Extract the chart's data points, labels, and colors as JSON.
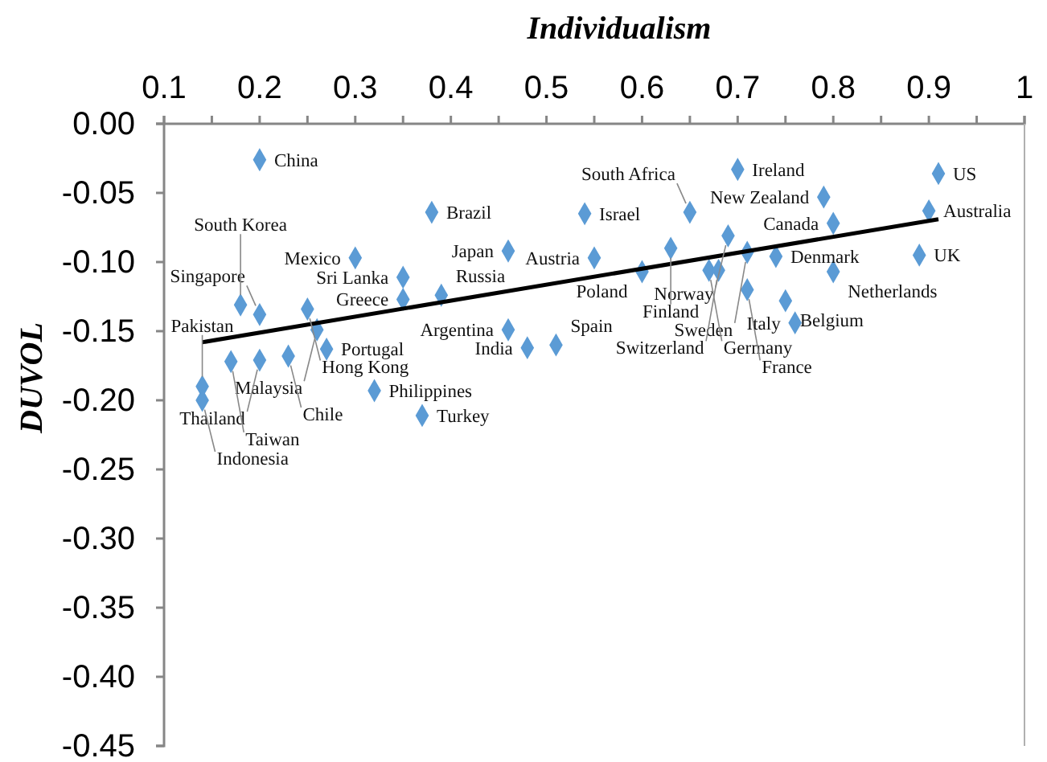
{
  "chart_data": {
    "type": "scatter",
    "xlabel": "Individualism",
    "ylabel": "DUVOL",
    "xlim": [
      0.1,
      1
    ],
    "ylim": [
      -0.45,
      0
    ],
    "xticks": [
      0.1,
      {
        "value": 0.15,
        "label": null
      },
      0.2,
      {
        "value": 0.25,
        "label": null
      },
      0.3,
      {
        "value": 0.35,
        "label": null
      },
      0.4,
      {
        "value": 0.45,
        "label": null
      },
      0.5,
      {
        "value": 0.55,
        "label": null
      },
      0.6,
      {
        "value": 0.65,
        "label": null
      },
      0.7,
      {
        "value": 0.75,
        "label": null
      },
      0.8,
      {
        "value": 0.85,
        "label": null
      },
      0.9,
      {
        "value": 0.95,
        "label": null
      },
      1
    ],
    "yticks": [
      {
        "value": 0,
        "label": "0.00"
      },
      {
        "value": -0.05,
        "label": "-0.05"
      },
      {
        "value": -0.1,
        "label": "-0.10"
      },
      {
        "value": -0.15,
        "label": "-0.15"
      },
      {
        "value": -0.2,
        "label": "-0.20"
      },
      {
        "value": -0.25,
        "label": "-0.25"
      },
      {
        "value": -0.3,
        "label": "-0.30"
      },
      {
        "value": -0.35,
        "label": "-0.35"
      },
      {
        "value": -0.4,
        "label": "-0.40"
      },
      {
        "value": -0.45,
        "label": "-0.45"
      }
    ],
    "grid": false,
    "marker": "diamond",
    "series": [
      {
        "type": "scatter",
        "color": "#5b9bd5",
        "x": [
          0.2,
          0.7,
          0.91,
          0.79,
          0.9,
          0.38,
          0.54,
          0.65,
          0.8,
          0.69,
          0.63,
          0.71,
          0.74,
          0.89,
          0.55,
          0.6,
          0.67,
          0.68,
          0.8,
          0.71,
          0.75,
          0.76,
          0.46,
          0.3,
          0.35,
          0.39,
          0.35,
          0.25,
          0.2,
          0.18,
          0.26,
          0.27,
          0.23,
          0.2,
          0.17,
          0.14,
          0.14,
          0.32,
          0.37,
          0.46,
          0.48,
          0.51
        ],
        "values": [
          -0.026,
          -0.033,
          -0.036,
          -0.053,
          -0.063,
          -0.064,
          -0.065,
          -0.064,
          -0.072,
          -0.081,
          -0.09,
          -0.093,
          -0.096,
          -0.095,
          -0.097,
          -0.107,
          -0.106,
          -0.106,
          -0.107,
          -0.12,
          -0.128,
          -0.144,
          -0.092,
          -0.097,
          -0.111,
          -0.124,
          -0.127,
          -0.134,
          -0.138,
          -0.131,
          -0.149,
          -0.163,
          -0.168,
          -0.171,
          -0.172,
          -0.19,
          -0.2,
          -0.193,
          -0.211,
          -0.149,
          -0.162,
          -0.16
        ]
      },
      {
        "type": "line",
        "color": "#000000",
        "marker": "none",
        "line_style": "solid",
        "x": [
          0.14,
          0.91
        ],
        "values": [
          -0.158,
          -0.069
        ]
      }
    ],
    "annotations": [
      {
        "text": "China",
        "x": 0.2,
        "y": -0.026
      },
      {
        "text": "Ireland",
        "x": 0.7,
        "y": -0.033
      },
      {
        "text": "US",
        "x": 0.91,
        "y": -0.036
      },
      {
        "text": "New Zealand",
        "x": 0.79,
        "y": -0.053
      },
      {
        "text": "Australia",
        "x": 0.9,
        "y": -0.063
      },
      {
        "text": "Brazil",
        "x": 0.38,
        "y": -0.064
      },
      {
        "text": "Israel",
        "x": 0.54,
        "y": -0.065
      },
      {
        "text": "South Africa",
        "x": 0.65,
        "y": -0.064
      },
      {
        "text": "Canada",
        "x": 0.8,
        "y": -0.072
      },
      {
        "text": "Norway",
        "x": 0.69,
        "y": -0.081
      },
      {
        "text": "Finland",
        "x": 0.63,
        "y": -0.09
      },
      {
        "text": "Sweden",
        "x": 0.71,
        "y": -0.093
      },
      {
        "text": "Denmark",
        "x": 0.74,
        "y": -0.096
      },
      {
        "text": "UK",
        "x": 0.89,
        "y": -0.095
      },
      {
        "text": "Austria",
        "x": 0.55,
        "y": -0.097
      },
      {
        "text": "Poland",
        "x": 0.6,
        "y": -0.107
      },
      {
        "text": "Germany",
        "x": 0.67,
        "y": -0.106
      },
      {
        "text": "Switzerland",
        "x": 0.68,
        "y": -0.106
      },
      {
        "text": "Netherlands",
        "x": 0.8,
        "y": -0.107
      },
      {
        "text": "France",
        "x": 0.71,
        "y": -0.12
      },
      {
        "text": "Belgium",
        "x": 0.75,
        "y": -0.128
      },
      {
        "text": "Italy",
        "x": 0.76,
        "y": -0.144
      },
      {
        "text": "Japan",
        "x": 0.46,
        "y": -0.092
      },
      {
        "text": "Mexico",
        "x": 0.3,
        "y": -0.097
      },
      {
        "text": "Sri Lanka",
        "x": 0.35,
        "y": -0.111
      },
      {
        "text": "Russia",
        "x": 0.39,
        "y": -0.124
      },
      {
        "text": "Greece",
        "x": 0.35,
        "y": -0.127
      },
      {
        "text": "Hong Kong",
        "x": 0.25,
        "y": -0.134
      },
      {
        "text": "Singapore",
        "x": 0.2,
        "y": -0.138
      },
      {
        "text": "South Korea",
        "x": 0.18,
        "y": -0.131
      },
      {
        "text": "Malaysia",
        "x": 0.26,
        "y": -0.149
      },
      {
        "text": "Portugal",
        "x": 0.27,
        "y": -0.163
      },
      {
        "text": "Chile",
        "x": 0.23,
        "y": -0.168
      },
      {
        "text": "Thailand",
        "x": 0.2,
        "y": -0.171
      },
      {
        "text": "Taiwan",
        "x": 0.17,
        "y": -0.172
      },
      {
        "text": "Pakistan",
        "x": 0.14,
        "y": -0.19
      },
      {
        "text": "Indonesia",
        "x": 0.14,
        "y": -0.2
      },
      {
        "text": "Philippines",
        "x": 0.32,
        "y": -0.193
      },
      {
        "text": "Turkey",
        "x": 0.37,
        "y": -0.211
      },
      {
        "text": "Argentina",
        "x": 0.46,
        "y": -0.149
      },
      {
        "text": "India",
        "x": 0.48,
        "y": -0.162
      },
      {
        "text": "Spain",
        "x": 0.51,
        "y": -0.16
      }
    ]
  }
}
